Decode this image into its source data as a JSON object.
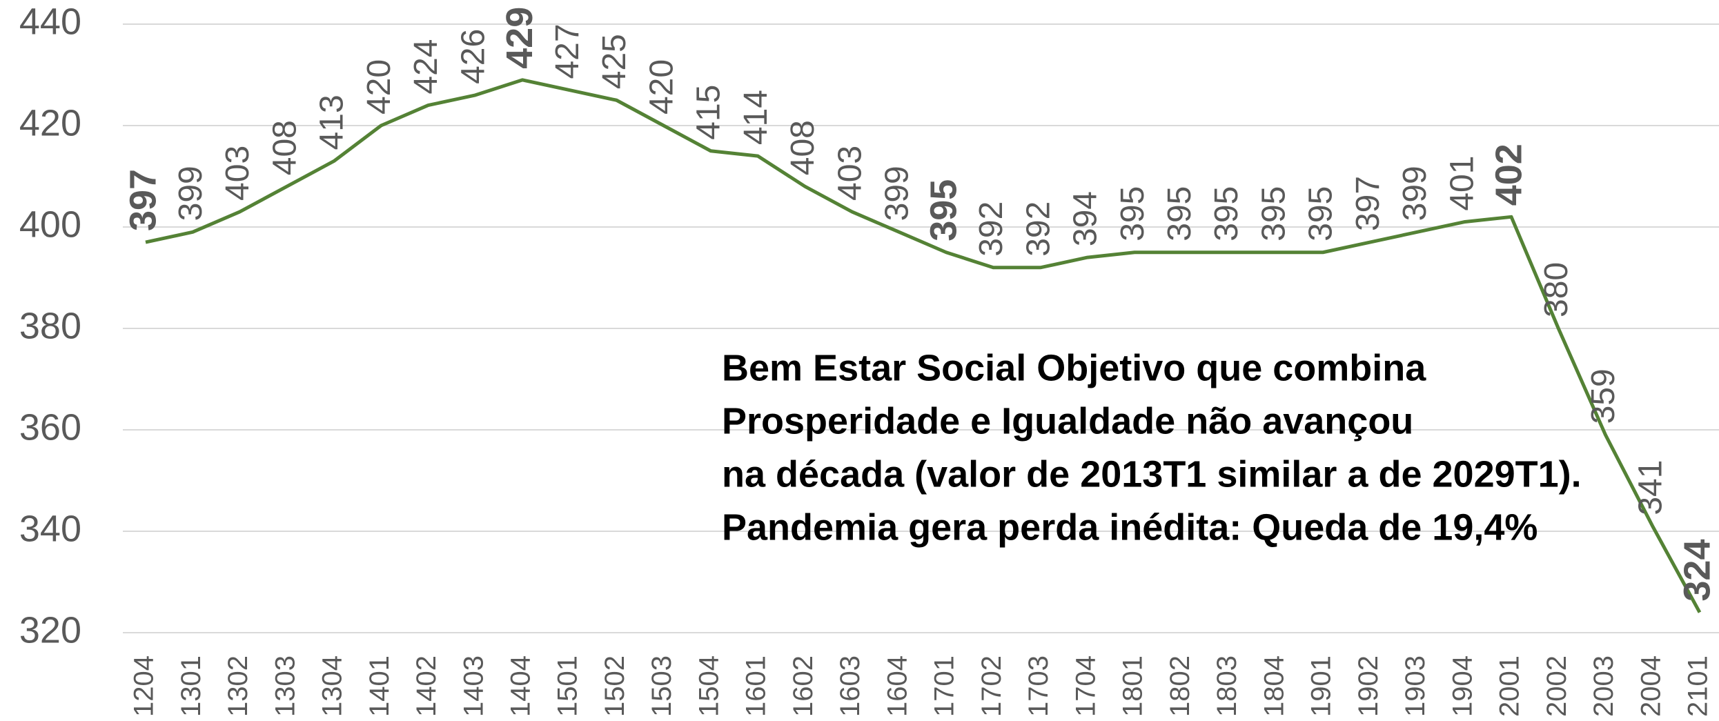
{
  "chart_data": {
    "type": "line",
    "categories": [
      "1204",
      "1301",
      "1302",
      "1303",
      "1304",
      "1401",
      "1402",
      "1403",
      "1404",
      "1501",
      "1502",
      "1503",
      "1504",
      "1601",
      "1602",
      "1603",
      "1604",
      "1701",
      "1702",
      "1703",
      "1704",
      "1801",
      "1802",
      "1803",
      "1804",
      "1901",
      "1902",
      "1903",
      "1904",
      "2001",
      "2002",
      "2003",
      "2004",
      "2101"
    ],
    "values": [
      397,
      399,
      403,
      408,
      413,
      420,
      424,
      426,
      429,
      427,
      425,
      420,
      415,
      414,
      408,
      403,
      399,
      395,
      392,
      392,
      394,
      395,
      395,
      395,
      395,
      395,
      397,
      399,
      401,
      402,
      380,
      359,
      341,
      324
    ],
    "color": "#548235",
    "bold_labels": [
      0,
      8,
      17,
      29,
      33
    ],
    "ylim": [
      320,
      440
    ],
    "yticks": [
      320,
      340,
      360,
      380,
      400,
      420,
      440
    ],
    "grid": true,
    "annotation": [
      "Bem Estar Social Objetivo que combina",
      "Prosperidade e Igualdade não avançou",
      "na década (valor de 2013T1 similar a de 2029T1).",
      "Pandemia gera perda inédita: Queda de 19,4%"
    ]
  }
}
